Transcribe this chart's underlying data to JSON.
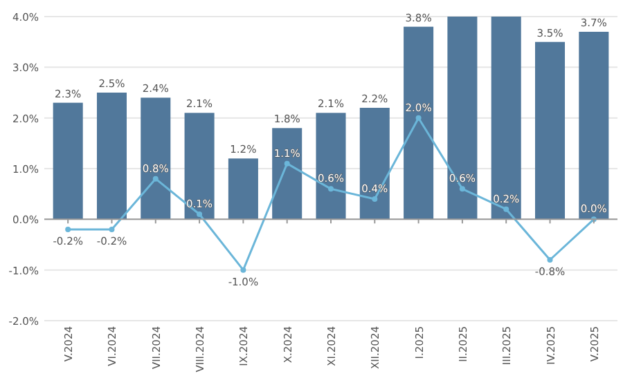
{
  "chart_data": {
    "type": "bar",
    "categories": [
      "V.2024",
      "VI.2024",
      "VII.2024",
      "VIII.2024",
      "IX.2024",
      "X.2024",
      "XI.2024",
      "XII.2024",
      "I.2025",
      "II.2025",
      "III.2025",
      "IV.2025",
      "V.2025"
    ],
    "series": [
      {
        "color": "#51789b",
        "values": [
          2.3,
          2.5,
          2.4,
          2.1,
          1.2,
          1.8,
          2.1,
          2.2,
          3.8,
          4.0,
          4.0,
          3.5,
          3.7
        ],
        "value_labels": [
          "2.3%",
          "2.5%",
          "2.4%",
          "2.1%",
          "1.2%",
          "1.8%",
          "2.1%",
          "2.2%",
          "3.8%",
          null,
          null,
          "3.5%",
          "3.7%"
        ]
      },
      {
        "type": "line",
        "color": "#6bb6d9",
        "marker": "circle",
        "values": [
          -0.2,
          -0.2,
          0.8,
          0.1,
          -1.0,
          1.1,
          0.6,
          0.4,
          2.0,
          0.6,
          0.2,
          -0.8,
          0.0
        ],
        "value_labels": [
          "-0.2%",
          "-0.2%",
          "0.8%",
          "0.1%",
          "-1.0%",
          "1.1%",
          "0.6%",
          "0.4%",
          "2.0%",
          "0.6%",
          "0.2%",
          "-0.8%",
          "0.0%"
        ]
      }
    ],
    "ylim": [
      -2,
      4
    ],
    "yticks": [
      {
        "value": -2,
        "label": "-2.0%"
      },
      {
        "value": -1,
        "label": "-1.0%"
      },
      {
        "value": 0,
        "label": "0.0%"
      },
      {
        "value": 1,
        "label": "1.0%"
      },
      {
        "value": 2,
        "label": "2.0%"
      },
      {
        "value": 3,
        "label": "3.0%"
      },
      {
        "value": 4,
        "label": "4.0%"
      }
    ],
    "grid": "y"
  }
}
